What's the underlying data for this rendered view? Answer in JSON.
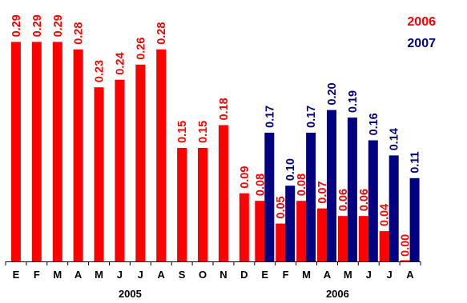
{
  "chart_data": {
    "type": "bar",
    "categories": [
      "E",
      "F",
      "M",
      "A",
      "M",
      "J",
      "J",
      "A",
      "S",
      "O",
      "N",
      "D",
      "E",
      "F",
      "M",
      "A",
      "M",
      "J",
      "J",
      "A"
    ],
    "groups": [
      {
        "label": "2005",
        "categories": [
          "E",
          "F",
          "M",
          "A",
          "M",
          "J",
          "J",
          "A",
          "S",
          "O",
          "N",
          "D"
        ]
      },
      {
        "label": "2006",
        "categories": [
          "E",
          "F",
          "M",
          "A",
          "M",
          "J",
          "J",
          "A"
        ]
      }
    ],
    "series": [
      {
        "name": "2006",
        "color": "#ff0000",
        "values": [
          0.29,
          0.29,
          0.29,
          0.28,
          0.23,
          0.24,
          0.26,
          0.28,
          0.15,
          0.15,
          0.18,
          0.09,
          0.08,
          0.05,
          0.08,
          0.07,
          0.06,
          0.06,
          0.04,
          0.0
        ],
        "labels": [
          "0.29",
          "0.29",
          "0.29",
          "0.28",
          "0.23",
          "0.24",
          "0.26",
          "0.28",
          "0.15",
          "0.15",
          "0.18",
          "0.09",
          "0.08",
          "0.05",
          "0.08",
          "0.07",
          "0.06",
          "0.06",
          "0.04",
          "0.00"
        ]
      },
      {
        "name": "2007",
        "color": "#000080",
        "values": [
          null,
          null,
          null,
          null,
          null,
          null,
          null,
          null,
          null,
          null,
          null,
          null,
          0.17,
          0.1,
          0.17,
          0.2,
          0.19,
          0.16,
          0.14,
          0.11
        ],
        "labels": [
          "",
          "",
          "",
          "",
          "",
          "",
          "",
          "",
          "",
          "",
          "",
          "",
          "0.17",
          "0.10",
          "0.17",
          "0.20",
          "0.19",
          "0.16",
          "0.14",
          "0.11"
        ]
      }
    ],
    "ylim": [
      0,
      0.3
    ],
    "legend_position": "top-right",
    "grid": false
  }
}
